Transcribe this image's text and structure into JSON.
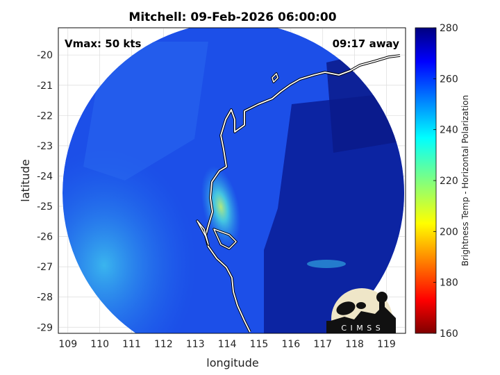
{
  "title": "Mitchell: 09-Feb-2026 06:00:00",
  "annotations": {
    "vmax": "Vmax: 50 kts",
    "time_away": "09:17 away"
  },
  "axes": {
    "xlabel": "longitude",
    "ylabel": "latitude",
    "x_ticks": [
      "109",
      "110",
      "111",
      "112",
      "113",
      "114",
      "115",
      "116",
      "117",
      "118",
      "119"
    ],
    "y_ticks": [
      "-20",
      "-21",
      "-22",
      "-23",
      "-24",
      "-25",
      "-26",
      "-27",
      "-28",
      "-29"
    ],
    "xlim": [
      108.7,
      119.6
    ],
    "ylim": [
      -29.2,
      -19.1
    ]
  },
  "colorbar": {
    "label": "Brightness Temp - Horizontal Polarization",
    "ticks": [
      "280",
      "260",
      "240",
      "220",
      "200",
      "180",
      "160"
    ],
    "range": [
      160,
      280
    ],
    "colormap": "jet"
  },
  "logo": {
    "text": "C I M S S"
  },
  "colors": {
    "background_disk": "#1a46e6",
    "cold_core": "#3cc8e8",
    "warm_region": "#0a1e8c",
    "coastline": "#ffffff"
  }
}
